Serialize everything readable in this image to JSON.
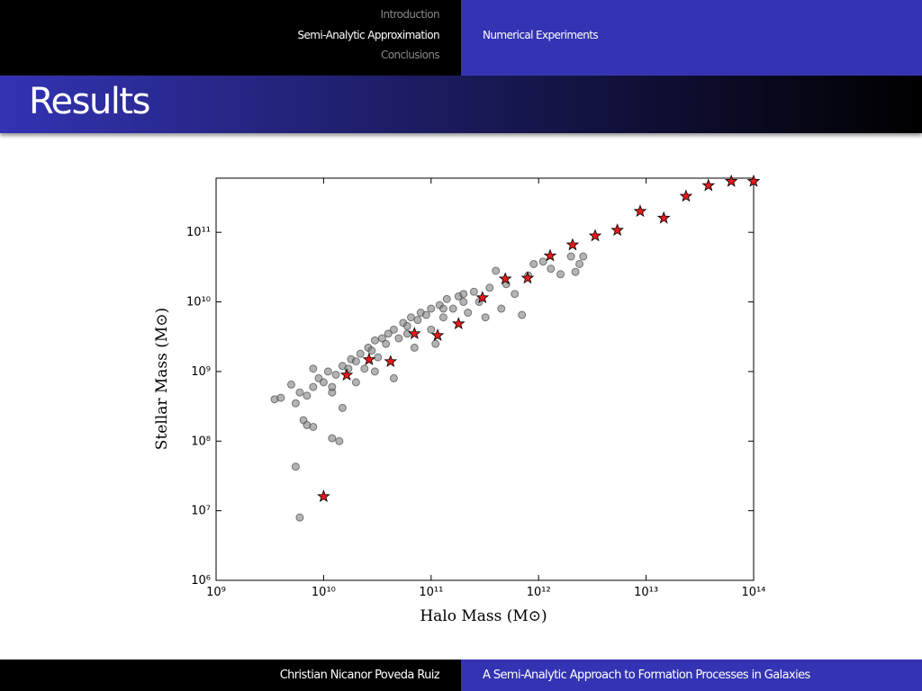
{
  "nav": {
    "sections": [
      "Introduction",
      "Semi-Analytic Approximation",
      "Conclusions"
    ],
    "current": "Numerical Experiments"
  },
  "slide_title": "Results",
  "footer": {
    "author": "Christian Nicanor Poveda Ruiz",
    "talk": "A Semi-Analytic Approach to Formation Processes in Galaxies"
  },
  "chart_data": {
    "type": "scatter",
    "xlabel": "Halo Mass (M⊙)",
    "ylabel": "Stellar Mass (M⊙)",
    "xscale": "log",
    "yscale": "log",
    "xlim": [
      1000000000.0,
      100000000000000.0
    ],
    "ylim": [
      1000000.0,
      600000000000.0
    ],
    "xticks": [
      {
        "value": 1000000000.0,
        "label": "10⁹"
      },
      {
        "value": 10000000000.0,
        "label": "10¹⁰"
      },
      {
        "value": 100000000000.0,
        "label": "10¹¹"
      },
      {
        "value": 1000000000000.0,
        "label": "10¹²"
      },
      {
        "value": 10000000000000.0,
        "label": "10¹³"
      },
      {
        "value": 100000000000000.0,
        "label": "10¹⁴"
      }
    ],
    "yticks": [
      {
        "value": 1000000.0,
        "label": "10⁶"
      },
      {
        "value": 10000000.0,
        "label": "10⁷"
      },
      {
        "value": 100000000.0,
        "label": "10⁸"
      },
      {
        "value": 1000000000.0,
        "label": "10⁹"
      },
      {
        "value": 10000000000.0,
        "label": "10¹⁰"
      },
      {
        "value": 100000000000.0,
        "label": "10¹¹"
      }
    ],
    "series": [
      {
        "color": "#808080",
        "marker": "circle",
        "x": [
          3500000000.0,
          4000000000.0,
          5000000000.0,
          5500000000.0,
          6000000000.0,
          6500000000.0,
          7000000000.0,
          8000000000.0,
          12000000000.0,
          14000000000.0,
          5500000000.0,
          6000000000.0,
          7000000000.0,
          8000000000.0,
          9000000000.0,
          10000000000.0,
          11000000000.0,
          12000000000.0,
          13000000000.0,
          15000000000.0,
          15000000000.0,
          17000000000.0,
          18000000000.0,
          20000000000.0,
          22000000000.0,
          24000000000.0,
          26000000000.0,
          28000000000.0,
          30000000000.0,
          32000000000.0,
          35000000000.0,
          38000000000.0,
          40000000000.0,
          45000000000.0,
          45000000000.0,
          50000000000.0,
          55000000000.0,
          60000000000.0,
          65000000000.0,
          70000000000.0,
          75000000000.0,
          80000000000.0,
          90000000000.0,
          100000000000.0,
          100000000000.0,
          110000000000.0,
          120000000000.0,
          130000000000.0,
          140000000000.0,
          160000000000.0,
          180000000000.0,
          200000000000.0,
          220000000000.0,
          250000000000.0,
          280000000000.0,
          320000000000.0,
          350000000000.0,
          400000000000.0,
          450000000000.0,
          500000000000.0,
          600000000000.0,
          700000000000.0,
          800000000000.0,
          900000000000.0,
          1100000000000.0,
          1300000000000.0,
          1600000000000.0,
          2000000000000.0,
          2200000000000.0,
          2400000000000.0,
          2600000000000.0,
          8000000000.0,
          12000000000.0,
          20000000000.0,
          30000000000.0,
          60000000000.0,
          200000000000.0,
          130000000000.0
        ],
        "y": [
          400000000.0,
          420000000.0,
          650000000.0,
          43000000.0,
          8000000.0,
          200000000.0,
          170000000.0,
          160000000.0,
          110000000.0,
          100000000.0,
          350000000.0,
          500000000.0,
          450000000.0,
          600000000.0,
          800000000.0,
          700000000.0,
          1000000000.0,
          500000000.0,
          900000000.0,
          300000000.0,
          1200000000.0,
          1100000000.0,
          1500000000.0,
          1400000000.0,
          1800000000.0,
          1100000000.0,
          2200000000.0,
          2000000000.0,
          2800000000.0,
          1600000000.0,
          3000000000.0,
          2500000000.0,
          3500000000.0,
          800000000.0,
          4000000000.0,
          3000000000.0,
          5000000000.0,
          4500000000.0,
          6000000000.0,
          2200000000.0,
          5500000000.0,
          7000000000.0,
          6500000000.0,
          8000000000.0,
          4000000000.0,
          2500000000.0,
          9000000000.0,
          6000000000.0,
          11000000000.0,
          8000000000.0,
          12000000000.0,
          10000000000.0,
          7000000000.0,
          14000000000.0,
          10000000000.0,
          6000000000.0,
          16000000000.0,
          28000000000.0,
          8000000000.0,
          18000000000.0,
          13000000000.0,
          6500000000.0,
          24000000000.0,
          35000000000.0,
          38000000000.0,
          30000000000.0,
          25000000000.0,
          45000000000.0,
          27000000000.0,
          35000000000.0,
          45000000000.0,
          1100000000.0,
          600000000.0,
          700000000.0,
          1000000000.0,
          3500000000.0,
          13000000000.0,
          8000000000.0
        ]
      },
      {
        "color": "#e41a1c",
        "marker": "star",
        "x": [
          10000000000.0,
          16400000000.0,
          26500000000.0,
          42000000000.0,
          70000000000.0,
          115000000000.0,
          180000000000.0,
          300000000000.0,
          490000000000.0,
          790000000000.0,
          1280000000000.0,
          2070000000000.0,
          3360000000000.0,
          5400000000000.0,
          8800000000000.0,
          14600000000000.0,
          23500000000000.0,
          38000000000000.0,
          62000000000000.0,
          100000000000000.0
        ],
        "y": [
          16000000.0,
          890000000.0,
          1480000000.0,
          1390000000.0,
          3500000000.0,
          3300000000.0,
          4850000000.0,
          11500000000.0,
          21400000000.0,
          22000000000.0,
          46000000000.0,
          66000000000.0,
          89000000000.0,
          107000000000.0,
          200000000000.0,
          160000000000.0,
          330000000000.0,
          470000000000.0,
          540000000000.0,
          540000000000.0
        ]
      }
    ]
  }
}
